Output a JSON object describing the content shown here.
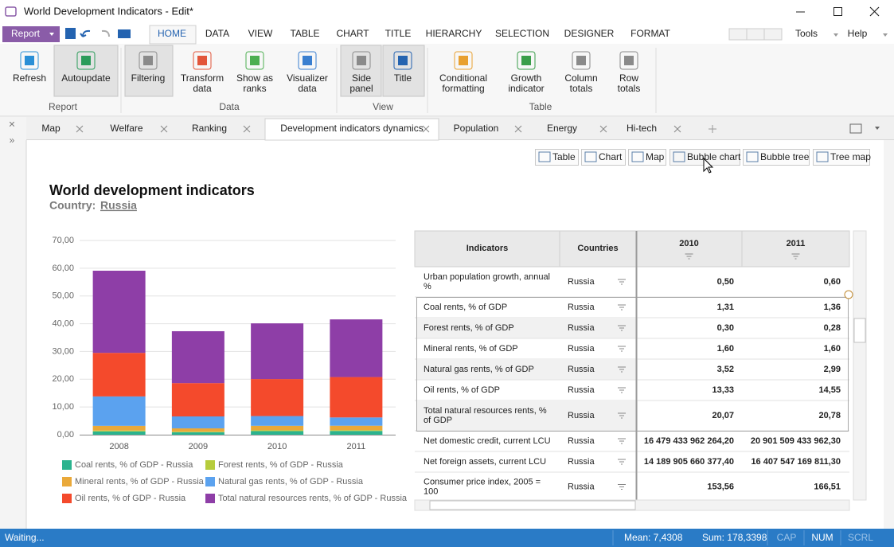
{
  "window": {
    "title": "World Development Indicators - Edit*"
  },
  "menu": {
    "report": "Report",
    "tabs": [
      "HOME",
      "DATA",
      "VIEW",
      "TABLE",
      "CHART",
      "TITLE",
      "HIERARCHY",
      "SELECTION",
      "DESIGNER",
      "FORMAT"
    ],
    "tools": "Tools",
    "help": "Help"
  },
  "ribbon": {
    "buttons": [
      [
        "Refresh"
      ],
      [
        "Autoupdate"
      ],
      [
        "Filtering"
      ],
      [
        "Transform",
        "data"
      ],
      [
        "Show as",
        "ranks"
      ],
      [
        "Visualizer",
        "data"
      ],
      [
        "Side",
        "panel"
      ],
      [
        "Title"
      ],
      [
        "Conditional",
        "formatting"
      ],
      [
        "Growth",
        "indicator"
      ],
      [
        "Column",
        "totals"
      ],
      [
        "Row",
        "totals"
      ]
    ],
    "groups": [
      "Report",
      "Data",
      "View",
      "Table"
    ]
  },
  "doc_tabs": [
    "Map",
    "Welfare",
    "Ranking",
    "Development indicators dynamics",
    "Population",
    "Energy",
    "Hi-tech"
  ],
  "view_buttons": [
    "Table",
    "Chart",
    "Map",
    "Bubble chart",
    "Bubble tree",
    "Tree map"
  ],
  "report": {
    "title": "World development indicators",
    "country_label": "Country:",
    "country": "Russia"
  },
  "chart_data": {
    "type": "stacked-bar",
    "categories": [
      "2008",
      "2009",
      "2010",
      "2011"
    ],
    "series": [
      {
        "name": "Coal rents, % of GDP - Russia",
        "color": "#2bb38e",
        "values": [
          1.2,
          0.9,
          1.31,
          1.36
        ]
      },
      {
        "name": "Forest rents, % of GDP - Russia",
        "color": "#b6cc3c",
        "values": [
          0.3,
          0.2,
          0.3,
          0.28
        ]
      },
      {
        "name": "Mineral rents, % of GDP - Russia",
        "color": "#eaa93a",
        "values": [
          1.7,
          1.2,
          1.6,
          1.6
        ]
      },
      {
        "name": "Natural gas rents, % of GDP - Russia",
        "color": "#5ba2ef",
        "values": [
          10.6,
          4.3,
          3.52,
          2.99
        ]
      },
      {
        "name": "Oil rents, % of GDP - Russia",
        "color": "#f44a2c",
        "values": [
          15.7,
          12.0,
          13.33,
          14.55
        ]
      },
      {
        "name": "Total natural resources rents, % of GDP - Russia",
        "color": "#8e3ea7",
        "values": [
          29.6,
          18.7,
          20.07,
          20.78
        ]
      }
    ],
    "ylim": [
      0,
      70
    ],
    "yticks": [
      {
        "value": 0,
        "label": "0,00"
      },
      {
        "value": 10,
        "label": "10,00"
      },
      {
        "value": 20,
        "label": "20,00"
      },
      {
        "value": 30,
        "label": "30,00"
      },
      {
        "value": 40,
        "label": "40,00"
      },
      {
        "value": 50,
        "label": "50,00"
      },
      {
        "value": 60,
        "label": "60,00"
      },
      {
        "value": 70,
        "label": "70,00"
      }
    ],
    "grid": true,
    "legend": "bottom"
  },
  "table": {
    "columns": [
      "Indicators",
      "Countries",
      "2010",
      "2011"
    ],
    "rows": [
      {
        "indicator": [
          "Urban population growth, annual",
          "%"
        ],
        "country": "Russia",
        "values": [
          "0,50",
          "0,60"
        ]
      },
      {
        "indicator": [
          "Coal rents, % of GDP"
        ],
        "country": "Russia",
        "values": [
          "1,31",
          "1,36"
        ]
      },
      {
        "indicator": [
          "Forest rents, % of GDP"
        ],
        "country": "Russia",
        "values": [
          "0,30",
          "0,28"
        ]
      },
      {
        "indicator": [
          "Mineral rents, % of GDP"
        ],
        "country": "Russia",
        "values": [
          "1,60",
          "1,60"
        ]
      },
      {
        "indicator": [
          "Natural gas rents, % of GDP"
        ],
        "country": "Russia",
        "values": [
          "3,52",
          "2,99"
        ]
      },
      {
        "indicator": [
          "Oil rents, % of GDP"
        ],
        "country": "Russia",
        "values": [
          "13,33",
          "14,55"
        ]
      },
      {
        "indicator": [
          "Total natural resources rents, %",
          "of GDP"
        ],
        "country": "Russia",
        "values": [
          "20,07",
          "20,78"
        ]
      },
      {
        "indicator": [
          "Net domestic credit, current LCU"
        ],
        "country": "Russia",
        "values": [
          "16 479 433 962 264,20",
          "20 901 509 433 962,30"
        ]
      },
      {
        "indicator": [
          "Net foreign assets, current LCU"
        ],
        "country": "Russia",
        "values": [
          "14 189 905 660 377,40",
          "16 407 547 169 811,30"
        ]
      },
      {
        "indicator": [
          "Consumer price index, 2005 =",
          "100"
        ],
        "country": "Russia",
        "values": [
          "153,56",
          "166,51"
        ]
      }
    ]
  },
  "status": {
    "state": "Waiting...",
    "mean": "Mean: 7,4308",
    "sum": "Sum: 178,3398",
    "keys": [
      "CAP",
      "NUM",
      "SCRL"
    ]
  }
}
